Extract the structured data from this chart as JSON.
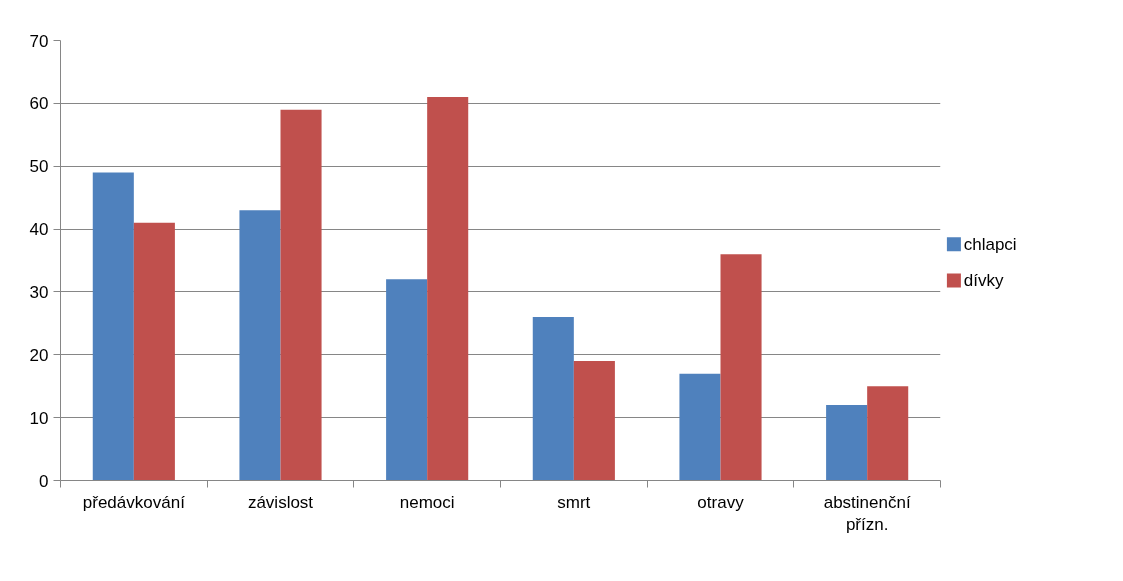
{
  "chart_data": {
    "type": "bar",
    "categories": [
      "předávkování",
      "závislost",
      "nemoci",
      "smrt",
      "otravy",
      "abstinenční přízn."
    ],
    "series": [
      {
        "name": "chlapci",
        "color": "#4f81bd",
        "values": [
          49,
          43,
          32,
          26,
          17,
          12
        ]
      },
      {
        "name": "dívky",
        "color": "#c0504d",
        "values": [
          41,
          59,
          61,
          19,
          36,
          15
        ]
      }
    ],
    "ylim": [
      0,
      70
    ],
    "yticks": [
      0,
      10,
      20,
      30,
      40,
      50,
      60,
      70
    ],
    "grid": "y",
    "legend": "right"
  }
}
